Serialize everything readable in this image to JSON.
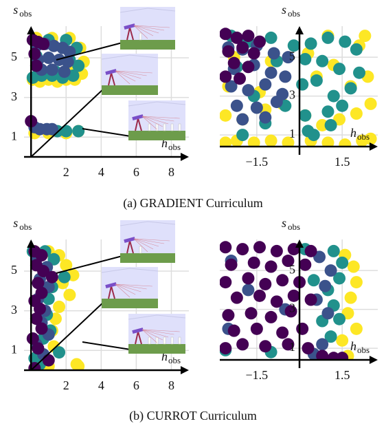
{
  "chart_data": [
    {
      "type": "scatter",
      "xlabel": "h",
      "xlabel_sub": "obs",
      "ylabel": "s",
      "ylabel_sub": "obs",
      "xlim": [
        -0.4,
        9
      ],
      "ylim": [
        0,
        6.6
      ],
      "xticks": [
        2,
        4,
        6,
        8
      ],
      "yticks": [
        1,
        3,
        5
      ],
      "grid": true,
      "series": [
        {
          "color": "#fde725",
          "x": [
            0.1,
            0.5,
            1.0,
            1.5,
            2.0,
            2.5,
            2.9,
            3.0,
            2.8,
            0.3,
            1.2,
            2.2,
            0.2,
            1.0,
            2.0,
            2.7,
            0.5,
            1.5,
            2.5
          ],
          "y": [
            3.9,
            3.8,
            3.9,
            3.8,
            3.9,
            3.9,
            4.2,
            4.8,
            5.5,
            6.0,
            6.0,
            6.0,
            1.2,
            1.2,
            1.2,
            1.3,
            4.3,
            4.1,
            4.5
          ]
        },
        {
          "color": "#21918c",
          "x": [
            0.1,
            0.6,
            1.2,
            1.8,
            2.4,
            2.7,
            0.3,
            1.0,
            2.0,
            2.6,
            0.4,
            1.4,
            2.2,
            1.5,
            2.0,
            2.7,
            0.3
          ],
          "y": [
            4.0,
            4.1,
            4.1,
            4.0,
            4.1,
            4.6,
            5.8,
            5.9,
            5.9,
            5.5,
            4.5,
            4.3,
            4.9,
            1.3,
            1.3,
            1.3,
            5.1
          ]
        },
        {
          "color": "#3b528b",
          "x": [
            0.3,
            0.8,
            1.3,
            1.8,
            2.2,
            0.4,
            1.0,
            1.6,
            2.1,
            0.6,
            1.2,
            1.9,
            0.2,
            0.5,
            0.9,
            1.2
          ],
          "y": [
            5.6,
            5.7,
            5.6,
            5.5,
            5.3,
            4.9,
            5.0,
            4.9,
            4.8,
            4.4,
            4.4,
            4.3,
            1.5,
            1.4,
            1.4,
            1.4
          ]
        },
        {
          "color": "#440154",
          "x": [
            0.1,
            0.4,
            0.7,
            0.2,
            0.0,
            0.3
          ],
          "y": [
            5.9,
            5.8,
            5.7,
            5.2,
            1.8,
            4.6
          ]
        }
      ]
    },
    {
      "type": "scatter",
      "xlabel": "h",
      "xlabel_sub": "obs",
      "ylabel": "s",
      "ylabel_sub": "obs",
      "xlim": [
        -2.8,
        2.75
      ],
      "ylim": [
        0.4,
        6.6
      ],
      "xticks": [
        {
          "value": -1.5,
          "label": "−1.5"
        },
        1.5
      ],
      "yticks": [
        1,
        3,
        5
      ],
      "grid": true,
      "series": [
        {
          "color": "#fde725",
          "x": [
            -2.6,
            -2.2,
            -1.6,
            -1.0,
            -0.4,
            0.4,
            1.0,
            1.6,
            2.2,
            2.5,
            -2.6,
            -2.0,
            -1.2,
            0.2,
            0.8,
            1.4,
            2.0,
            2.5,
            -2.5,
            -1.4,
            -0.6,
            0.6,
            1.8,
            2.4,
            -2.3,
            -1.0,
            0.3,
            1.2,
            2.1,
            2.3,
            1.0
          ],
          "y": [
            0.6,
            0.7,
            0.6,
            0.7,
            0.6,
            0.7,
            0.6,
            0.5,
            0.7,
            0.8,
            2.0,
            1.8,
            2.3,
            2.0,
            1.5,
            1.8,
            2.1,
            2.6,
            3.5,
            3.2,
            2.6,
            4.0,
            3.5,
            4.0,
            5.0,
            4.8,
            5.2,
            4.6,
            5.6,
            6.1,
            6.1
          ]
        },
        {
          "color": "#21918c",
          "x": [
            -2.4,
            -1.8,
            -1.0,
            -0.2,
            0.4,
            1.0,
            1.6,
            2.0,
            -2.2,
            -0.8,
            0.2,
            0.8,
            1.4,
            2.1,
            -1.6,
            0.1,
            0.6,
            1.2,
            1.8,
            -0.5,
            0.2,
            1.0,
            1.5,
            0.3,
            1.1,
            -1.2,
            -2.0,
            0.5
          ],
          "y": [
            6.1,
            5.8,
            6.0,
            5.6,
            5.7,
            6.0,
            5.8,
            5.4,
            4.5,
            4.8,
            4.9,
            4.8,
            4.4,
            4.2,
            3.0,
            3.6,
            3.8,
            3.0,
            3.4,
            2.5,
            2.0,
            2.2,
            2.5,
            1.2,
            1.5,
            1.6,
            1.0,
            1.0
          ]
        },
        {
          "color": "#3b528b",
          "x": [
            -2.5,
            -2.0,
            -1.5,
            -0.9,
            -0.4,
            -2.3,
            -1.6,
            -1.0,
            -0.5,
            -2.4,
            -1.8,
            -1.2,
            -0.6,
            -2.2,
            -1.5,
            -0.8,
            -2.0,
            -1.2
          ],
          "y": [
            5.5,
            5.4,
            5.6,
            5.2,
            5.0,
            4.4,
            4.6,
            4.2,
            4.0,
            3.5,
            3.3,
            3.6,
            3.1,
            2.5,
            2.4,
            2.7,
            1.8,
            1.9
          ]
        },
        {
          "color": "#440154",
          "x": [
            -2.6,
            -2.2,
            -1.8,
            -1.4,
            -2.5,
            -2.0,
            -1.6,
            -2.3,
            -1.8,
            -2.6,
            -2.1
          ],
          "y": [
            6.2,
            6.0,
            6.1,
            5.8,
            5.3,
            5.5,
            5.2,
            4.7,
            4.5,
            4.0,
            3.9
          ]
        }
      ]
    },
    {
      "type": "scatter",
      "xlabel": "h",
      "xlabel_sub": "obs",
      "ylabel": "s",
      "ylabel_sub": "obs",
      "xlim": [
        -0.4,
        9
      ],
      "ylim": [
        0,
        6.6
      ],
      "xticks": [
        2,
        4,
        6,
        8
      ],
      "yticks": [
        1,
        3,
        5
      ],
      "grid": true,
      "series": [
        {
          "color": "#fde725",
          "x": [
            0.2,
            1.0,
            1.6,
            2.0,
            2.4,
            1.8,
            2.2,
            1.6,
            1.4,
            1.2,
            2.6,
            0.6,
            1.0,
            1.3,
            2.7
          ],
          "y": [
            6.0,
            6.0,
            5.8,
            5.3,
            4.8,
            4.4,
            3.8,
            3.2,
            2.6,
            2.0,
            0.3,
            0.2,
            0.2,
            1.2,
            0.2
          ]
        },
        {
          "color": "#21918c",
          "x": [
            0.1,
            0.8,
            1.3,
            1.9,
            1.2,
            1.0,
            0.9,
            1.1,
            0.7,
            1.6,
            0.2,
            0.5
          ],
          "y": [
            6.0,
            6.0,
            5.6,
            4.7,
            4.2,
            3.6,
            2.8,
            2.0,
            1.6,
            0.9,
            0.6,
            0.3
          ]
        },
        {
          "color": "#3b528b",
          "x": [
            0.3,
            0.9,
            0.5,
            1.0,
            0.4,
            0.8,
            0.6,
            1.0,
            0.3,
            0.7
          ],
          "y": [
            5.6,
            5.2,
            4.6,
            4.2,
            3.6,
            3.0,
            2.4,
            1.8,
            1.3,
            0.8
          ]
        },
        {
          "color": "#440154",
          "x": [
            0.2,
            0.6,
            0.3,
            0.7,
            1.2,
            0.4,
            0.6,
            0.2,
            0.5,
            0.3,
            0.6,
            0.1,
            0.4,
            1.0,
            0.2
          ],
          "y": [
            6.0,
            5.8,
            5.3,
            5.0,
            4.7,
            4.4,
            3.9,
            3.5,
            3.1,
            2.6,
            2.1,
            1.6,
            1.1,
            0.5,
            0.1
          ]
        }
      ]
    },
    {
      "type": "scatter",
      "xlabel": "h",
      "xlabel_sub": "obs",
      "ylabel": "s",
      "ylabel_sub": "obs",
      "xlim": [
        -2.8,
        2.75
      ],
      "ylim": [
        0.4,
        6.6
      ],
      "xticks": [
        {
          "value": -1.5,
          "label": "−1.5"
        },
        1.5
      ],
      "yticks": [
        1,
        3,
        5
      ],
      "grid": true,
      "series": [
        {
          "color": "#fde725",
          "x": [
            1.6,
            1.9,
            2.0,
            1.8,
            1.7,
            2.0,
            1.5,
            1.7
          ],
          "y": [
            5.8,
            5.2,
            4.4,
            3.6,
            2.8,
            2.0,
            1.4,
            0.6
          ]
        },
        {
          "color": "#21918c",
          "x": [
            1.2,
            1.5,
            1.4,
            1.0,
            1.2,
            0.8,
            1.1,
            -2.6,
            -1.0,
            0.5,
            1.4,
            0.2
          ],
          "y": [
            6.0,
            5.4,
            4.6,
            4.0,
            3.2,
            2.4,
            1.6,
            0.9,
            0.8,
            4.5,
            2.5,
            6.1
          ]
        },
        {
          "color": "#3b528b",
          "x": [
            0.7,
            1.1,
            0.9,
            0.6,
            1.0,
            -2.5,
            -1.8,
            0.8,
            -0.5,
            -2.4,
            0.5
          ],
          "y": [
            5.7,
            5.0,
            4.2,
            3.5,
            2.8,
            2.0,
            4.0,
            1.2,
            3.0,
            5.5,
            0.7
          ]
        },
        {
          "color": "#440154",
          "x": [
            -2.6,
            -2.0,
            -1.4,
            -0.8,
            -0.2,
            0.4,
            -2.4,
            -1.6,
            -1.0,
            -0.4,
            0.2,
            -2.6,
            -1.8,
            -1.2,
            -0.6,
            0.0,
            -2.2,
            -1.4,
            -0.8,
            -0.2,
            0.4,
            -2.5,
            -1.7,
            -1.0,
            -0.3,
            -2.3,
            -1.5,
            -0.6,
            0.1,
            -2.6,
            -2.0,
            -1.2,
            -0.4,
            0.3,
            0.8,
            1.2,
            1.5
          ],
          "y": [
            6.2,
            6.1,
            6.2,
            6.0,
            6.1,
            6.0,
            5.3,
            5.4,
            5.2,
            5.5,
            5.3,
            4.4,
            4.6,
            4.3,
            4.5,
            4.4,
            3.6,
            3.7,
            3.4,
            3.7,
            3.5,
            2.7,
            2.8,
            2.6,
            2.9,
            1.9,
            2.0,
            1.8,
            2.0,
            1.0,
            1.2,
            1.1,
            1.2,
            1.0,
            0.6,
            0.5,
            0.5
          ]
        }
      ]
    }
  ],
  "captions": [
    "(a) GRADIENT Curriculum",
    "(b) CURROT Curriculum"
  ]
}
